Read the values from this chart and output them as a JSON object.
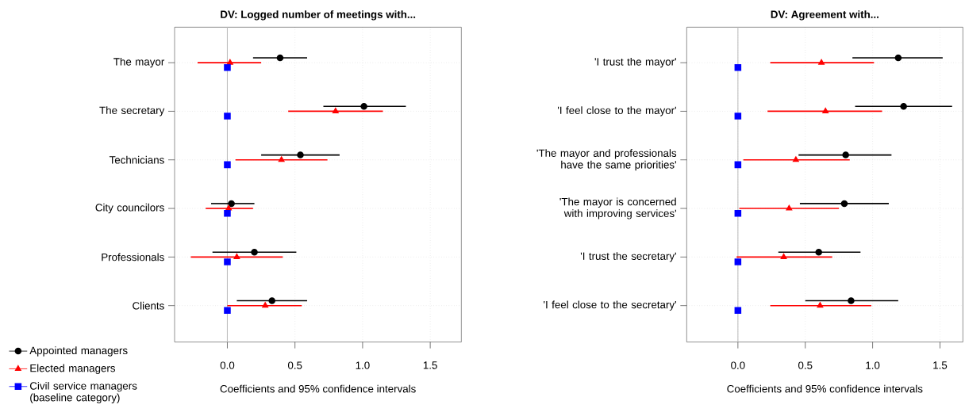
{
  "chart_data": [
    {
      "type": "scatter",
      "orientation": "horizontal",
      "title": "DV: Logged number of meetings with...",
      "xlabel": "Coefficients and 95% confidence intervals",
      "categories": [
        "The mayor",
        "The secretary",
        "Technicians",
        "City councilors",
        "Professionals",
        "Clients"
      ],
      "xlim": [
        -0.39,
        1.73
      ],
      "xticks": [
        {
          "value": 0,
          "label": "0.0"
        },
        {
          "value": 0.5,
          "label": "0.5"
        },
        {
          "value": 1,
          "label": "1.0"
        },
        {
          "value": 1.5,
          "label": "1.5"
        }
      ],
      "grid": true,
      "legend": "bottom left",
      "line_style": "solid",
      "ref_lines": [
        {
          "axis": "x",
          "value": 0,
          "color": "#bebebe"
        }
      ],
      "series": [
        {
          "name": "Appointed managers",
          "color": "#000000",
          "marker": "circle",
          "values": [
            0.39,
            1.01,
            0.54,
            0.03,
            0.2,
            0.33
          ],
          "errors": [
            [
              0.19,
              0.59
            ],
            [
              0.71,
              1.32
            ],
            [
              0.25,
              0.83
            ],
            [
              -0.12,
              0.2
            ],
            [
              -0.11,
              0.51
            ],
            [
              0.07,
              0.59
            ]
          ]
        },
        {
          "name": "Elected managers",
          "color": "#ff0000",
          "marker": "triangle",
          "values": [
            0.02,
            0.8,
            0.4,
            0.01,
            0.07,
            0.28
          ],
          "errors": [
            [
              -0.22,
              0.25
            ],
            [
              0.45,
              1.15
            ],
            [
              0.06,
              0.74
            ],
            [
              -0.16,
              0.19
            ],
            [
              -0.27,
              0.41
            ],
            [
              0.0,
              0.55
            ]
          ]
        },
        {
          "name": "Civil service managers (baseline category)",
          "color": "#0000ff",
          "marker": "square",
          "values": [
            0,
            0,
            0,
            0,
            0,
            0
          ]
        }
      ]
    },
    {
      "type": "scatter",
      "orientation": "horizontal",
      "title": "DV: Agreement with...",
      "xlabel": "Coefficients and 95% confidence intervals",
      "categories": [
        "'I trust the mayor'",
        "'I feel close to the mayor'",
        "'The mayor and professionals have the same priorities'",
        "'The mayor is concerned with improving services'",
        "'I trust the secretary'",
        "'I feel close to the secretary'"
      ],
      "xlim": [
        -0.38,
        1.67
      ],
      "xticks": [
        {
          "value": 0,
          "label": "0.0"
        },
        {
          "value": 0.5,
          "label": "0.5"
        },
        {
          "value": 1,
          "label": "1.0"
        },
        {
          "value": 1.5,
          "label": "1.5"
        }
      ],
      "grid": true,
      "line_style": "solid",
      "ref_lines": [
        {
          "axis": "x",
          "value": 0,
          "color": "#bebebe"
        }
      ],
      "series": [
        {
          "color": "#000000",
          "marker": "circle",
          "values": [
            1.19,
            1.23,
            0.8,
            0.79,
            0.6,
            0.84
          ],
          "errors": [
            [
              0.85,
              1.52
            ],
            [
              0.87,
              1.59
            ],
            [
              0.45,
              1.14
            ],
            [
              0.46,
              1.12
            ],
            [
              0.3,
              0.91
            ],
            [
              0.5,
              1.19
            ]
          ]
        },
        {
          "color": "#ff0000",
          "marker": "triangle",
          "values": [
            0.62,
            0.65,
            0.43,
            0.38,
            0.34,
            0.61
          ],
          "errors": [
            [
              0.24,
              1.01
            ],
            [
              0.22,
              1.07
            ],
            [
              0.04,
              0.83
            ],
            [
              0.01,
              0.75
            ],
            [
              -0.01,
              0.7
            ],
            [
              0.24,
              0.99
            ]
          ]
        },
        {
          "color": "#0000ff",
          "marker": "square",
          "values": [
            0,
            0,
            0,
            0,
            0,
            0
          ]
        }
      ]
    }
  ]
}
